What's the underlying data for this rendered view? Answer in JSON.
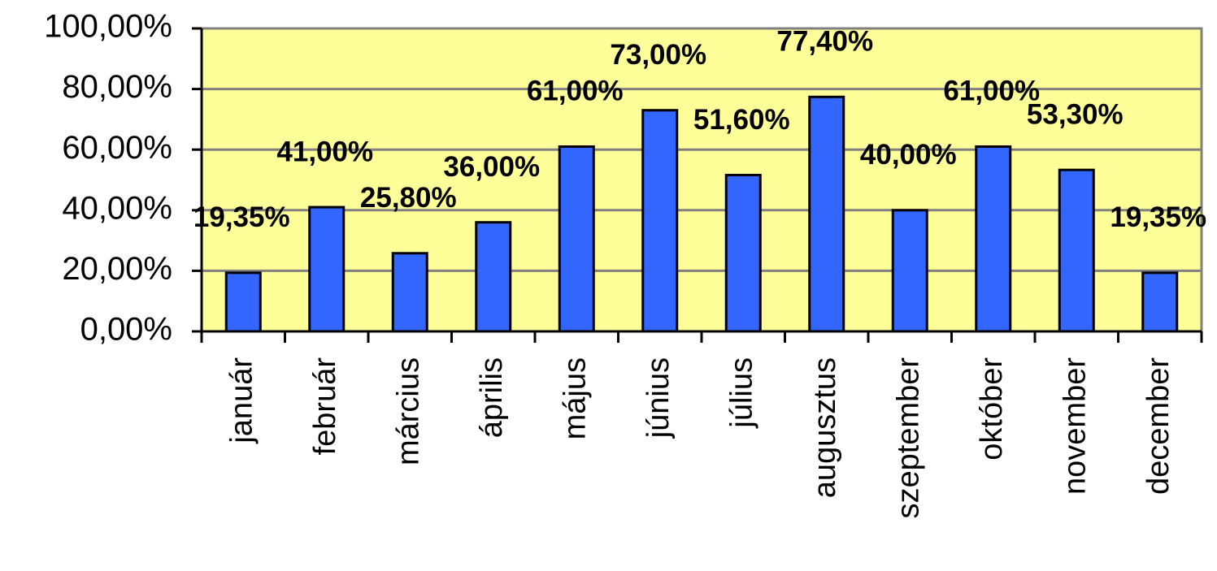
{
  "chart_data": {
    "type": "bar",
    "categories": [
      "január",
      "február",
      "március",
      "április",
      "május",
      "június",
      "július",
      "augusztus",
      "szeptember",
      "október",
      "november",
      "december"
    ],
    "values": [
      19.35,
      41,
      25.8,
      36,
      61,
      73,
      51.6,
      77.4,
      40,
      61,
      53.3,
      19.35
    ],
    "value_labels": [
      "19,35%",
      "41,00%",
      "25,80%",
      "36,00%",
      "61,00%",
      "73,00%",
      "51,60%",
      "77,40%",
      "40,00%",
      "61,00%",
      "53,30%",
      "19,35%"
    ],
    "color": "#3366ff",
    "ylim": [
      0,
      100
    ],
    "yticks": [
      {
        "value": 0,
        "label": "0,00%"
      },
      {
        "value": 20,
        "label": "20,00%"
      },
      {
        "value": 40,
        "label": "40,00%"
      },
      {
        "value": 60,
        "label": "60,00%"
      },
      {
        "value": 80,
        "label": "80,00%"
      },
      {
        "value": 100,
        "label": "100,00%"
      }
    ],
    "grid": true
  }
}
